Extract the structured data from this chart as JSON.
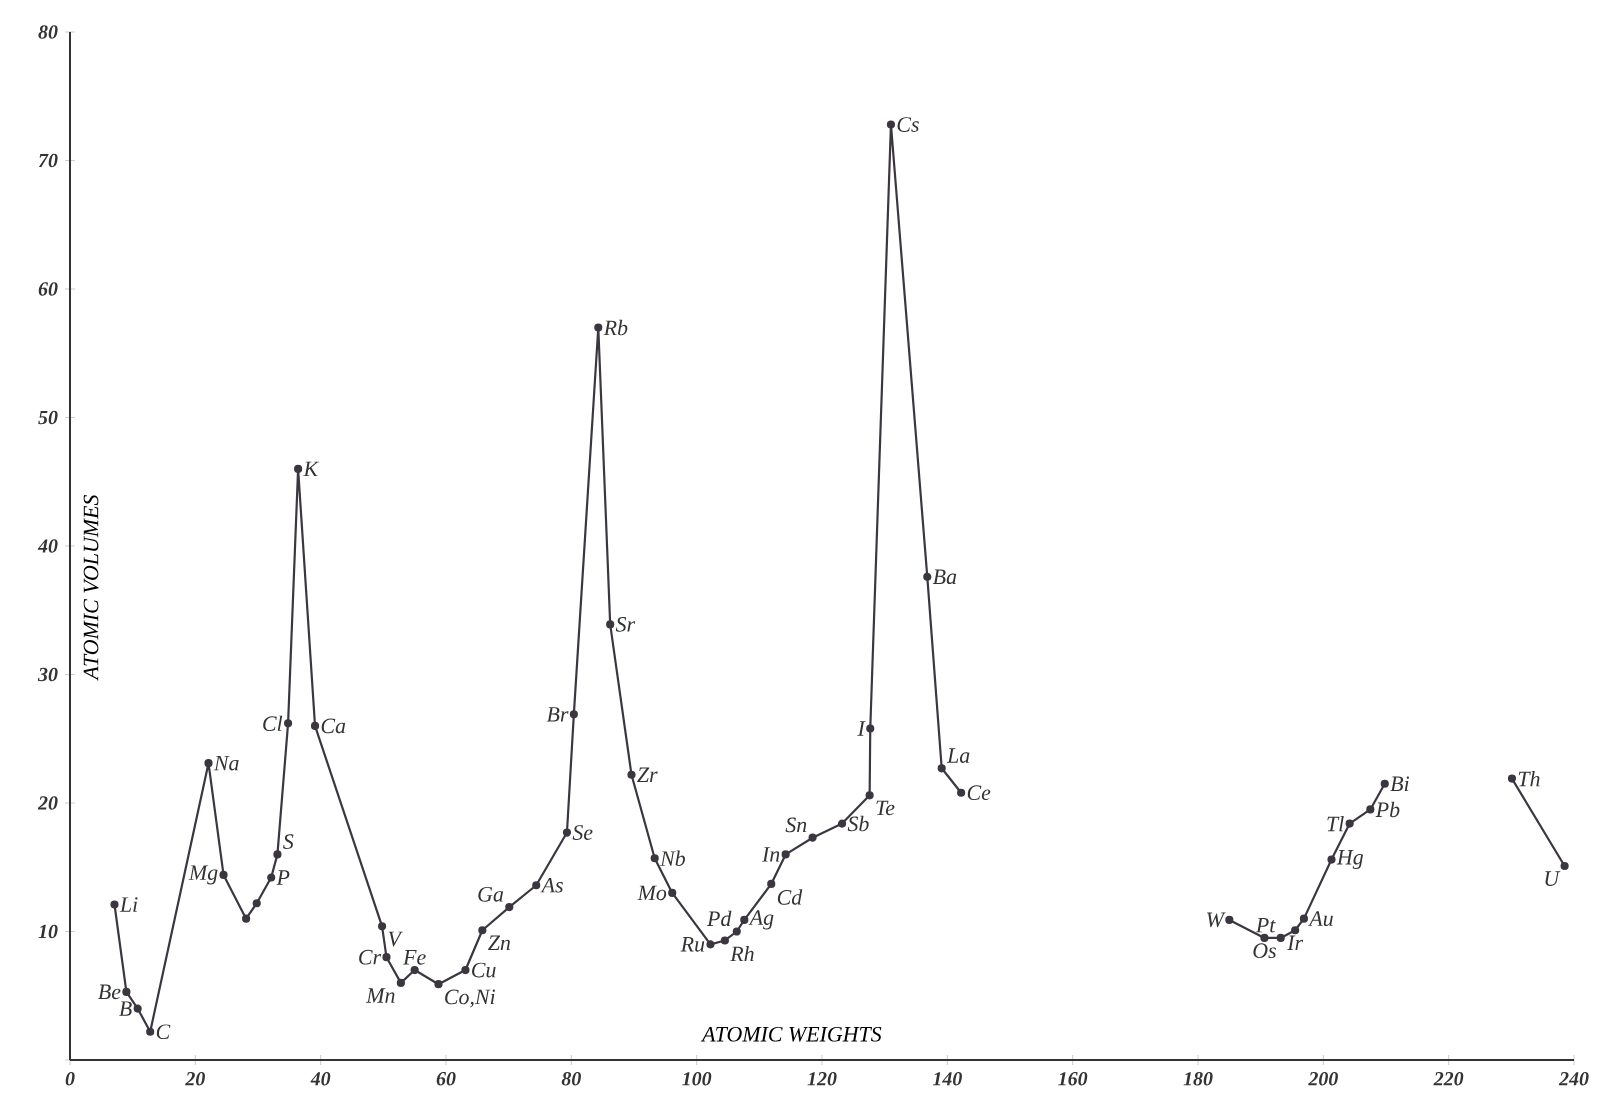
{
  "chart_data": {
    "type": "line",
    "xlabel": "ATOMIC WEIGHTS",
    "ylabel": "ATOMIC VOLUMES",
    "x": [
      7.1,
      9.0,
      10.8,
      12.8,
      22.1,
      24.5,
      28.1,
      29.8,
      32.1,
      33.1,
      34.8,
      36.4,
      39.1,
      49.8,
      50.5,
      52.8,
      55.0,
      58.8,
      63.1,
      65.8,
      70.1,
      74.4,
      79.3,
      80.4,
      84.3,
      86.2,
      89.6,
      93.3,
      96.1,
      102.2,
      104.5,
      106.4,
      107.6,
      111.9,
      114.2,
      118.5,
      123.2,
      127.6,
      127.7,
      131.0,
      136.8,
      139.1,
      142.2,
      null,
      185.0,
      190.6,
      193.2,
      195.5,
      196.9,
      201.3,
      204.2,
      207.5,
      209.8,
      null,
      230.1,
      238.5
    ],
    "series": [
      {
        "color": "#3b3640",
        "values": [
          12.1,
          5.3,
          4.0,
          2.2,
          23.1,
          14.4,
          11.0,
          12.2,
          14.2,
          16.0,
          26.2,
          46.0,
          26.0,
          10.4,
          8.0,
          6.0,
          7.0,
          5.9,
          7.0,
          10.1,
          11.9,
          13.6,
          17.7,
          26.9,
          57.0,
          33.9,
          22.2,
          15.7,
          13.0,
          9.0,
          9.3,
          10.0,
          10.9,
          13.7,
          16.0,
          17.3,
          18.4,
          20.6,
          25.8,
          72.8,
          37.6,
          22.7,
          20.8,
          null,
          10.9,
          9.5,
          9.5,
          10.1,
          11.0,
          15.6,
          18.4,
          19.5,
          21.5,
          null,
          21.9,
          15.1
        ]
      }
    ],
    "marker": "circle",
    "line_style": "solid",
    "xlim": [
      0,
      240
    ],
    "ylim": [
      0,
      80
    ],
    "xticks": [
      0,
      20,
      40,
      60,
      80,
      100,
      120,
      140,
      160,
      180,
      200,
      220,
      240
    ],
    "yticks": [
      {
        "value": 0,
        "label": null
      },
      10,
      20,
      30,
      40,
      50,
      60,
      70,
      80
    ],
    "annotations": [
      {
        "text": "Li",
        "x": 7.1,
        "y": 12.1
      },
      {
        "text": "Be",
        "x": 9.0,
        "y": 5.3
      },
      {
        "text": "B",
        "x": 10.8,
        "y": 4.0
      },
      {
        "text": "C",
        "x": 12.8,
        "y": 2.2
      },
      {
        "text": "Na",
        "x": 22.1,
        "y": 23.1
      },
      {
        "text": "Mg",
        "x": 24.5,
        "y": 14.4
      },
      {
        "text": "P",
        "x": 32.1,
        "y": 14.2
      },
      {
        "text": "S",
        "x": 33.1,
        "y": 16.0
      },
      {
        "text": "Cl",
        "x": 34.8,
        "y": 26.2
      },
      {
        "text": "K",
        "x": 36.4,
        "y": 46.0
      },
      {
        "text": "Ca",
        "x": 39.1,
        "y": 26.0
      },
      {
        "text": "V",
        "x": 49.8,
        "y": 10.4
      },
      {
        "text": "Cr",
        "x": 50.5,
        "y": 8.0
      },
      {
        "text": "Mn",
        "x": 52.8,
        "y": 6.0
      },
      {
        "text": "Fe",
        "x": 55.0,
        "y": 7.0
      },
      {
        "text": "Co,Ni",
        "x": 58.8,
        "y": 5.9
      },
      {
        "text": "Cu",
        "x": 63.1,
        "y": 7.0
      },
      {
        "text": "Zn",
        "x": 65.8,
        "y": 10.1
      },
      {
        "text": "Ga",
        "x": 70.1,
        "y": 11.9
      },
      {
        "text": "As",
        "x": 74.4,
        "y": 13.6
      },
      {
        "text": "Se",
        "x": 79.3,
        "y": 17.7
      },
      {
        "text": "Br",
        "x": 80.4,
        "y": 26.9
      },
      {
        "text": "Rb",
        "x": 84.3,
        "y": 57.0
      },
      {
        "text": "Sr",
        "x": 86.2,
        "y": 33.9
      },
      {
        "text": "Zr",
        "x": 89.6,
        "y": 22.2
      },
      {
        "text": "Nb",
        "x": 93.3,
        "y": 15.7
      },
      {
        "text": "Mo",
        "x": 96.1,
        "y": 13.0
      },
      {
        "text": "Ru",
        "x": 102.2,
        "y": 9.0
      },
      {
        "text": "Rh",
        "x": 104.5,
        "y": 9.3
      },
      {
        "text": "Pd",
        "x": 106.4,
        "y": 10.0
      },
      {
        "text": "Ag",
        "x": 107.6,
        "y": 10.9
      },
      {
        "text": "Cd",
        "x": 111.9,
        "y": 13.7
      },
      {
        "text": "In",
        "x": 114.2,
        "y": 16.0
      },
      {
        "text": "Sn",
        "x": 118.5,
        "y": 17.3
      },
      {
        "text": "Sb",
        "x": 123.2,
        "y": 18.4
      },
      {
        "text": "Te",
        "x": 127.6,
        "y": 20.6
      },
      {
        "text": "I",
        "x": 127.7,
        "y": 25.8
      },
      {
        "text": "Cs",
        "x": 131.0,
        "y": 72.8
      },
      {
        "text": "Ba",
        "x": 136.8,
        "y": 37.6
      },
      {
        "text": "La",
        "x": 139.1,
        "y": 22.7
      },
      {
        "text": "Ce",
        "x": 142.2,
        "y": 20.8
      },
      {
        "text": "W",
        "x": 185.0,
        "y": 10.9
      },
      {
        "text": "Os",
        "x": 190.6,
        "y": 9.5
      },
      {
        "text": "Pt",
        "x": 193.2,
        "y": 9.5
      },
      {
        "text": "Ir",
        "x": 195.5,
        "y": 10.1
      },
      {
        "text": "Au",
        "x": 196.9,
        "y": 11.0
      },
      {
        "text": "Hg",
        "x": 201.3,
        "y": 15.6
      },
      {
        "text": "Tl",
        "x": 204.2,
        "y": 18.4
      },
      {
        "text": "Pb",
        "x": 207.5,
        "y": 19.5
      },
      {
        "text": "Bi",
        "x": 209.8,
        "y": 21.5
      },
      {
        "text": "Th",
        "x": 230.1,
        "y": 21.9
      },
      {
        "text": "U",
        "x": 238.5,
        "y": 15.1
      }
    ]
  }
}
